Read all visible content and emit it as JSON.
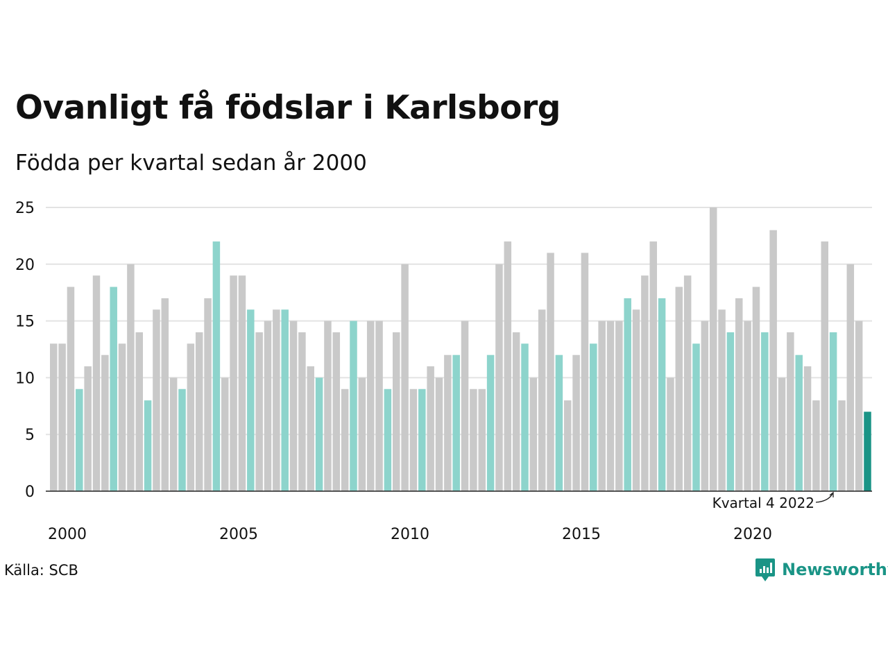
{
  "chart_data": {
    "type": "bar",
    "title": "Ovanligt få födslar i Karlsborg",
    "subtitle": "Födda per kvartal sedan år 2000",
    "ylim": [
      0,
      25
    ],
    "y_ticks": [
      "0",
      "5",
      "10",
      "15",
      "20",
      "25"
    ],
    "x_ticks": [
      "2000",
      "2005",
      "2010",
      "2015",
      "2020"
    ],
    "grid": "horizontal",
    "values": [
      13,
      13,
      18,
      9,
      11,
      19,
      12,
      18,
      13,
      20,
      14,
      8,
      16,
      17,
      10,
      9,
      13,
      14,
      17,
      22,
      10,
      19,
      19,
      16,
      14,
      15,
      16,
      16,
      15,
      14,
      11,
      10,
      15,
      14,
      9,
      15,
      10,
      15,
      15,
      9,
      14,
      20,
      9,
      9,
      11,
      10,
      12,
      12,
      15,
      9,
      9,
      12,
      20,
      22,
      14,
      13,
      10,
      16,
      21,
      12,
      8,
      12,
      21,
      13,
      15,
      15,
      15,
      17,
      16,
      19,
      22,
      17,
      10,
      18,
      19,
      13,
      15,
      25,
      16,
      14,
      17,
      15,
      18,
      14,
      23,
      10,
      14,
      12,
      11,
      8,
      22,
      14,
      8,
      20,
      15,
      7
    ],
    "highlighted_quarter": "Kvartal 4",
    "annotation": "Kvartal 4 2022",
    "colors": {
      "bar": "#c9c9c9",
      "highlight": "#8dd4cc",
      "latest": "#1a9486",
      "grid": "#e3e3e3",
      "axis": "#222222"
    }
  },
  "source": "Källa: SCB",
  "brand": {
    "name": "Newsworthy",
    "color": "#1a9486",
    "icon": "newsworthy-logo-icon"
  }
}
